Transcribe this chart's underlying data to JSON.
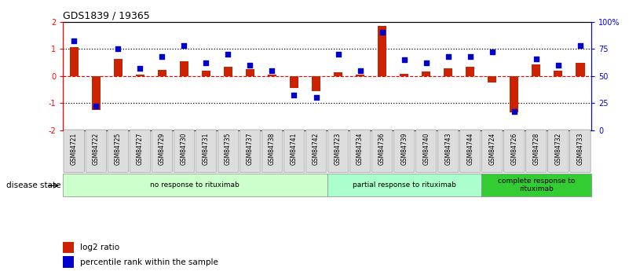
{
  "title": "GDS1839 / 19365",
  "samples": [
    "GSM84721",
    "GSM84722",
    "GSM84725",
    "GSM84727",
    "GSM84729",
    "GSM84730",
    "GSM84731",
    "GSM84735",
    "GSM84737",
    "GSM84738",
    "GSM84741",
    "GSM84742",
    "GSM84723",
    "GSM84734",
    "GSM84736",
    "GSM84739",
    "GSM84740",
    "GSM84743",
    "GSM84744",
    "GSM84724",
    "GSM84726",
    "GSM84728",
    "GSM84732",
    "GSM84733"
  ],
  "log2_ratio": [
    1.05,
    -1.25,
    0.62,
    0.05,
    0.22,
    0.55,
    0.2,
    0.35,
    0.25,
    0.05,
    -0.45,
    -0.55,
    0.12,
    0.05,
    1.85,
    0.08,
    0.15,
    0.28,
    0.35,
    -0.25,
    -1.35,
    0.42,
    0.18,
    0.48
  ],
  "percentile_rank": [
    82,
    22,
    75,
    57,
    68,
    78,
    62,
    70,
    60,
    55,
    32,
    30,
    70,
    55,
    90,
    65,
    62,
    68,
    68,
    72,
    17,
    66,
    60,
    78
  ],
  "groups": [
    {
      "label": "no response to rituximab",
      "start": 0,
      "end": 12,
      "color": "#ccffcc"
    },
    {
      "label": "partial response to rituximab",
      "start": 12,
      "end": 19,
      "color": "#aaffcc"
    },
    {
      "label": "complete response to\nrituximab",
      "start": 19,
      "end": 24,
      "color": "#33cc33"
    }
  ],
  "bar_color": "#cc2200",
  "dot_color": "#0000cc",
  "ylim_left": [
    -2,
    2
  ],
  "ylim_right": [
    0,
    100
  ],
  "yticks_left": [
    -2,
    -1,
    0,
    1,
    2
  ],
  "yticks_right": [
    0,
    25,
    50,
    75,
    100
  ],
  "ytick_labels_right": [
    "0",
    "25",
    "50",
    "75",
    "100%"
  ],
  "background_color": "#ffffff",
  "disease_state_label": "disease state"
}
